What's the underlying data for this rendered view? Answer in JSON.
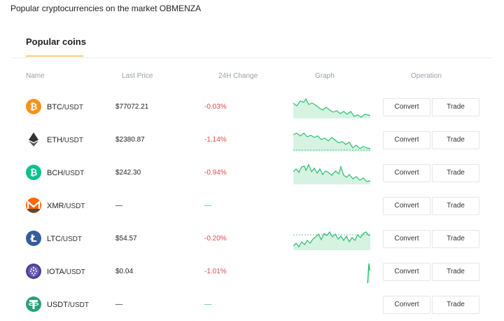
{
  "header": {
    "title": "Popular cryptocurrencies on the market OBMENZA"
  },
  "tabs": [
    {
      "label": "Popular coins"
    }
  ],
  "columns": {
    "name": "Name",
    "last_price": "Last Price",
    "change": "24H Change",
    "graph": "Graph",
    "operation": "Operation"
  },
  "buttons": {
    "convert": "Convert",
    "trade": "Trade"
  },
  "colors": {
    "accent_underline": "#f4cf7f",
    "negative": "#e04a4a",
    "positive": "#2ebd71"
  },
  "coins": [
    {
      "base": "BTC",
      "quote": "/USDT",
      "price": "$77072.21",
      "change": "-0.03%",
      "icon": "bitcoin-icon"
    },
    {
      "base": "ETH",
      "quote": "/USDT",
      "price": "$2380.87",
      "change": "-1.14%",
      "icon": "ethereum-icon"
    },
    {
      "base": "BCH",
      "quote": "/USDT",
      "price": "$242.30",
      "change": "-0.94%",
      "icon": "bitcoin-cash-icon"
    },
    {
      "base": "XMR",
      "quote": "/USDT",
      "price": "—",
      "change": "—",
      "icon": "monero-icon"
    },
    {
      "base": "LTC",
      "quote": "/USDT",
      "price": "$54.57",
      "change": "-0.20%",
      "icon": "litecoin-icon"
    },
    {
      "base": "IOTA",
      "quote": "/USDT",
      "price": "$0.04",
      "change": "-1.01%",
      "icon": "iota-icon"
    },
    {
      "base": "USDT",
      "quote": "/USDT",
      "price": "—",
      "change": "—",
      "icon": "tether-icon"
    }
  ]
}
